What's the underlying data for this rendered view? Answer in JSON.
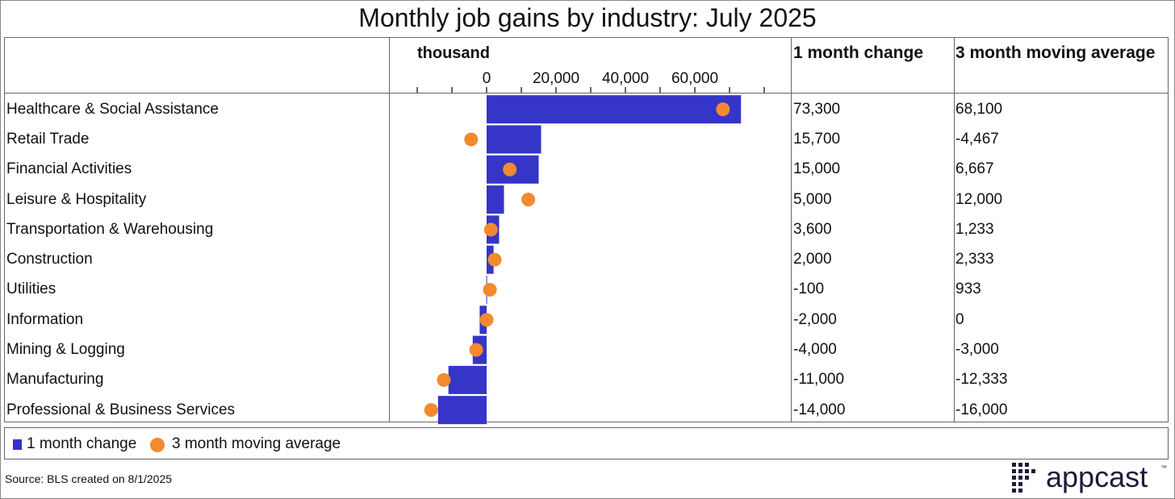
{
  "chart_data": {
    "type": "bar",
    "title": "Monthly job gains by industry: July 2025",
    "axis_title": "thousand",
    "orientation": "horizontal",
    "xlim": [
      -20000,
      80000
    ],
    "x_ticks": [
      "0",
      "20,000",
      "40,000",
      "60,000"
    ],
    "categories": [
      "Healthcare & Social Assistance",
      "Retail Trade",
      "Financial Activities",
      "Leisure & Hospitality",
      "Transportation & Warehousing",
      "Construction",
      "Utilities",
      "Information",
      "Mining & Logging",
      "Manufacturing",
      "Professional & Business Services"
    ],
    "series": [
      {
        "name": "1 month change",
        "mark": "bar",
        "color": "#3535c8",
        "values": [
          73300,
          15700,
          15000,
          5000,
          3600,
          2000,
          -100,
          -2000,
          -4000,
          -11000,
          -14000
        ],
        "labels": [
          "73,300",
          "15,700",
          "15,000",
          "5,000",
          "3,600",
          "2,000",
          "-100",
          "-2,000",
          "-4,000",
          "-11,000",
          "-14,000"
        ]
      },
      {
        "name": "3 month moving average",
        "mark": "dot",
        "color": "#f28a2e",
        "values": [
          68100,
          -4467,
          6667,
          12000,
          1233,
          2333,
          933,
          0,
          -3000,
          -12333,
          -16000
        ],
        "labels": [
          "68,100",
          "-4,467",
          "6,667",
          "12,000",
          "1,233",
          "2,333",
          "933",
          "0",
          "-3,000",
          "-12,333",
          "-16,000"
        ]
      }
    ],
    "columns": [
      "1 month change",
      "3 month moving average"
    ],
    "legend_position": "bottom"
  },
  "footer": {
    "source": "Source: BLS created on 8/1/2025",
    "logo_text": "appcast",
    "logo_tm": "™"
  }
}
